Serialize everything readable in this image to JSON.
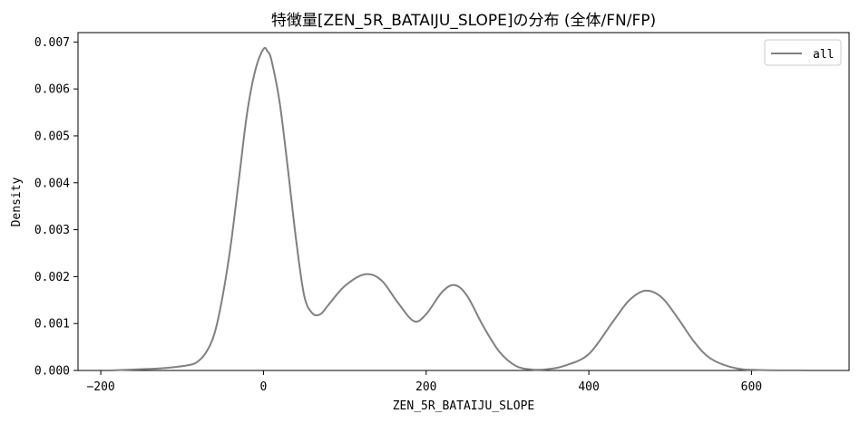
{
  "chart_data": {
    "type": "line",
    "title": "特徴量[ZEN_5R_BATAIJU_SLOPE]の分布 (全体/FN/FP)",
    "xlabel": "ZEN_5R_BATAIJU_SLOPE",
    "ylabel": "Density",
    "xlim": [
      -228,
      720
    ],
    "ylim": [
      0,
      0.0072
    ],
    "xticks": [
      -200,
      0,
      200,
      400,
      600
    ],
    "xtick_labels": [
      "−200",
      "0",
      "200",
      "400",
      "600"
    ],
    "yticks": [
      0,
      0.001,
      0.002,
      0.003,
      0.004,
      0.005,
      0.006,
      0.007
    ],
    "ytick_labels": [
      "0.000",
      "0.001",
      "0.002",
      "0.003",
      "0.004",
      "0.005",
      "0.006",
      "0.007"
    ],
    "grid": false,
    "legend": {
      "position": "top-right",
      "entries": [
        "all"
      ]
    },
    "series": [
      {
        "name": "all",
        "color": "#808080",
        "points": [
          [
            -190,
            0.0
          ],
          [
            -160,
            2e-05
          ],
          [
            -130,
            4e-05
          ],
          [
            -110,
            7e-05
          ],
          [
            -90,
            0.00012
          ],
          [
            -80,
            0.0002
          ],
          [
            -70,
            0.0004
          ],
          [
            -60,
            0.0008
          ],
          [
            -50,
            0.0016
          ],
          [
            -40,
            0.0027
          ],
          [
            -30,
            0.0041
          ],
          [
            -20,
            0.0055
          ],
          [
            -10,
            0.0064
          ],
          [
            0,
            0.00685
          ],
          [
            5,
            0.0068
          ],
          [
            10,
            0.0066
          ],
          [
            20,
            0.0057
          ],
          [
            30,
            0.0043
          ],
          [
            40,
            0.0028
          ],
          [
            50,
            0.0016
          ],
          [
            60,
            0.00122
          ],
          [
            70,
            0.0012
          ],
          [
            80,
            0.0014
          ],
          [
            100,
            0.0018
          ],
          [
            125,
            0.00205
          ],
          [
            145,
            0.00192
          ],
          [
            165,
            0.00145
          ],
          [
            185,
            0.00105
          ],
          [
            200,
            0.0012
          ],
          [
            220,
            0.00168
          ],
          [
            235,
            0.00182
          ],
          [
            250,
            0.0016
          ],
          [
            270,
            0.00095
          ],
          [
            290,
            0.0004
          ],
          [
            310,
            0.0001
          ],
          [
            330,
            2e-05
          ],
          [
            350,
            3e-05
          ],
          [
            370,
            0.0001
          ],
          [
            400,
            0.00035
          ],
          [
            430,
            0.00105
          ],
          [
            450,
            0.0015
          ],
          [
            470,
            0.0017
          ],
          [
            490,
            0.00155
          ],
          [
            510,
            0.0011
          ],
          [
            530,
            0.0006
          ],
          [
            550,
            0.00025
          ],
          [
            580,
            5e-05
          ],
          [
            610,
            1e-05
          ],
          [
            670,
            0.0
          ]
        ]
      }
    ]
  }
}
